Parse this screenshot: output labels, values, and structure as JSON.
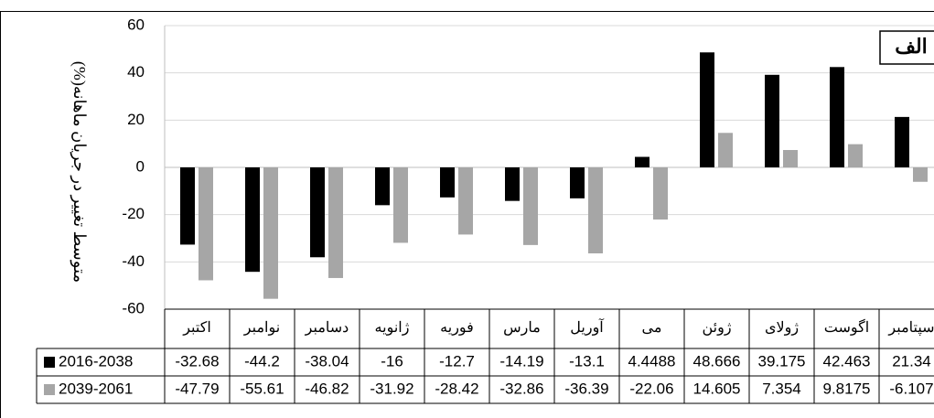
{
  "chart_data": {
    "type": "bar",
    "title": "الف",
    "y_label": "متوسط تغییر در جریان ماهانه(%)",
    "categories": [
      "اکتبر",
      "نوامبر",
      "دسامبر",
      "ژانویه",
      "فوریه",
      "مارس",
      "آوریل",
      "می",
      "ژوئن",
      "ژولای",
      "اگوست",
      "سپتامبر"
    ],
    "series": [
      {
        "name": "2016-2038",
        "color": "#000000",
        "values": [
          -32.68,
          -44.2,
          -38.04,
          -16,
          -12.7,
          -14.19,
          -13.1,
          4.4488,
          48.666,
          39.175,
          42.463,
          21.34
        ]
      },
      {
        "name": "2039-2061",
        "color": "#a6a6a6",
        "values": [
          -47.79,
          -55.61,
          -46.82,
          -31.92,
          -28.42,
          -32.86,
          -36.39,
          -22.06,
          14.605,
          7.354,
          9.8175,
          -6.107
        ]
      }
    ],
    "ylim": [
      -60,
      60
    ],
    "yticks": [
      -60,
      -40,
      -20,
      0,
      20,
      40,
      60
    ],
    "grid": true,
    "data_table": true
  }
}
